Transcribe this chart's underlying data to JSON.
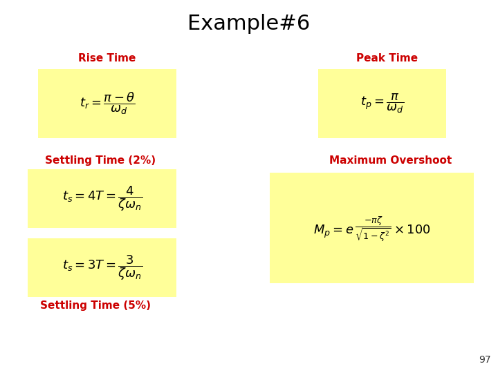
{
  "title": "Example#6",
  "title_fontsize": 22,
  "title_color": "#000000",
  "background_color": "#ffffff",
  "yellow_box_color": "#ffff99",
  "label_color": "#cc0000",
  "label_fontsize": 11,
  "formula_fontsize": 13,
  "page_number": "97",
  "labels": {
    "rise_time": "Rise Time",
    "settling_2": "Settling Time (2%)",
    "peak_time": "Peak Time",
    "max_overshoot": "Maximum Overshoot",
    "settling_5": "Settling Time (5%)"
  },
  "formulas": {
    "rise_time": "$t_r = \\dfrac{\\pi - \\theta}{\\omega_d}$",
    "peak_time": "$t_p = \\dfrac{\\pi}{\\omega_d}$",
    "settling_2": "$t_s = 4T = \\dfrac{4}{\\zeta\\omega_n}$",
    "settling_5": "$t_s = 3T = \\dfrac{3}{\\zeta\\omega_n}$",
    "max_overshoot": "$M_p = e^{\\,\\dfrac{-\\pi\\zeta}{\\sqrt{1-\\zeta^2}}} \\times 100$"
  }
}
